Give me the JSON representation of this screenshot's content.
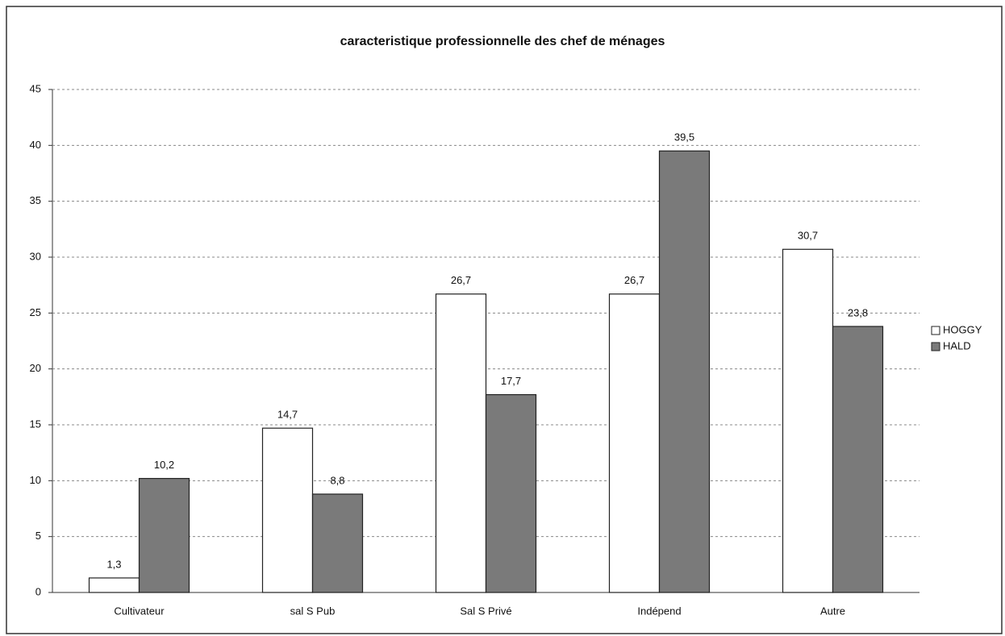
{
  "chart_data": {
    "type": "bar",
    "title": "caracteristique professionnelle des chef de ménages",
    "categories": [
      "Cultivateur",
      "sal S Pub",
      "Sal S Privé",
      "Indépend",
      "Autre"
    ],
    "series": [
      {
        "name": "HOGGY",
        "color": "#ffffff",
        "values": [
          1.3,
          14.7,
          26.7,
          26.7,
          30.7
        ],
        "value_labels": [
          "1,3",
          "14,7",
          "26,7",
          "26,7",
          "30,7"
        ]
      },
      {
        "name": "HALD",
        "color": "#7a7a7a",
        "values": [
          10.2,
          8.8,
          17.7,
          39.5,
          23.8
        ],
        "value_labels": [
          "10,2",
          "8,8",
          "17,7",
          "39,5",
          "23,8"
        ]
      }
    ],
    "ylim": [
      0,
      45
    ],
    "yticks": [
      0,
      5,
      10,
      15,
      20,
      25,
      30,
      35,
      40,
      45
    ],
    "grid": true,
    "legend": "right"
  }
}
